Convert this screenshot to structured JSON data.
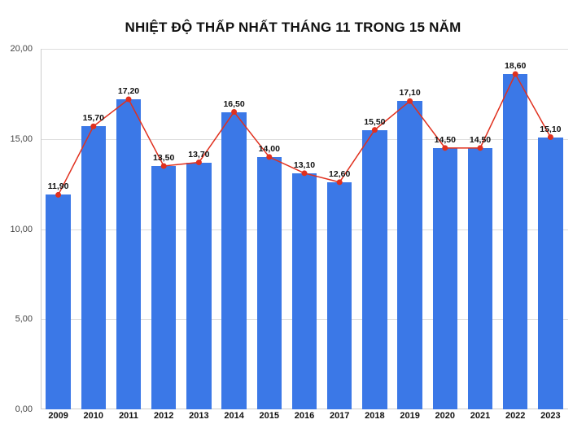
{
  "chart": {
    "type": "bar+line",
    "title": "NHIỆT ĐỘ THẤP NHẤT THÁNG 11 TRONG 15 NĂM",
    "title_fontsize": 17,
    "title_fontweight": "bold",
    "title_color": "#111111",
    "background_color": "#ffffff",
    "categories": [
      "2009",
      "2010",
      "2011",
      "2012",
      "2013",
      "2014",
      "2015",
      "2016",
      "2017",
      "2018",
      "2019",
      "2020",
      "2021",
      "2022",
      "2023"
    ],
    "values": [
      11.9,
      15.7,
      17.2,
      13.5,
      13.7,
      16.5,
      14.0,
      13.1,
      12.6,
      15.5,
      17.1,
      14.5,
      14.5,
      18.6,
      15.1
    ],
    "value_labels": [
      "11,90",
      "15,70",
      "17,20",
      "13,50",
      "13,70",
      "16,50",
      "14,00",
      "13,10",
      "12,60",
      "15,50",
      "17,10",
      "14,50",
      "14,50",
      "18,60",
      "15,10"
    ],
    "bar_color": "#3b78e7",
    "bar_width_ratio": 0.7,
    "line_color": "#e0301e",
    "line_width": 1.5,
    "marker_color": "#e0301e",
    "marker_radius": 3.5,
    "value_label_color": "#111111",
    "value_label_fontsize": 10.5,
    "value_label_fontweight": "bold",
    "x_label_fontsize": 11,
    "x_label_fontweight": "bold",
    "y_label_fontsize": 11,
    "y_label_color": "#444444",
    "grid_color": "#dddddd",
    "axis_color": "#cccccc",
    "ylim": [
      0,
      20
    ],
    "ytick_step": 5,
    "ytick_labels": [
      "0,00",
      "5,00",
      "10,00",
      "15,00",
      "20,00"
    ],
    "decimal_separator": ","
  }
}
